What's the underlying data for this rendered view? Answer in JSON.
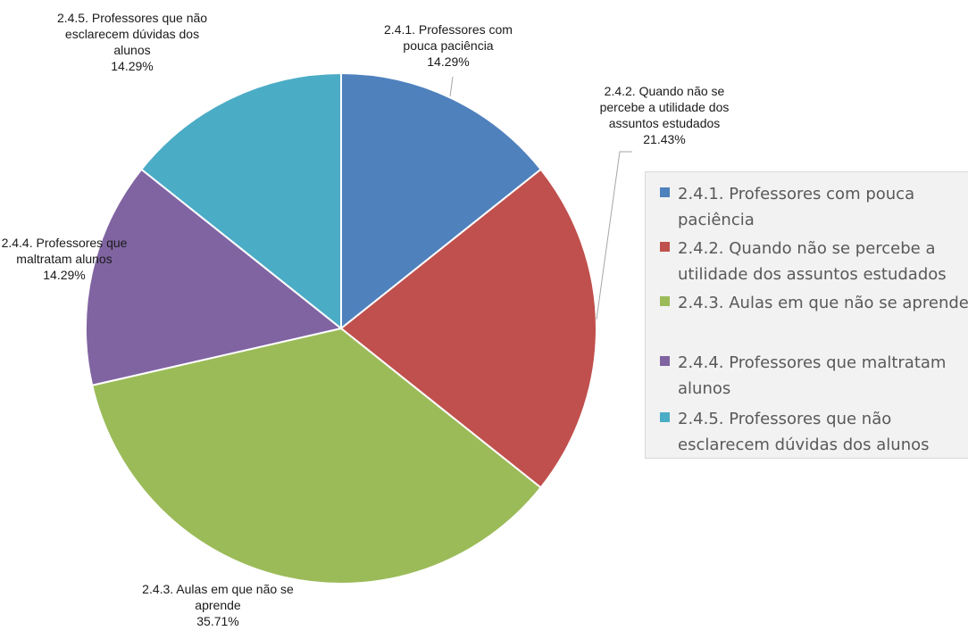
{
  "chart_data": {
    "type": "pie",
    "title": "",
    "categories": [
      "2.4.1. Professores com pouca paciência",
      "2.4.2. Quando não se percebe a utilidade dos assuntos estudados",
      "2.4.3. Aulas em que não se aprende",
      "2.4.4. Professores que maltratam alunos",
      "2.4.5. Professores que não esclarecem dúvidas dos alunos"
    ],
    "values": [
      14.29,
      21.43,
      35.71,
      14.29,
      14.29
    ],
    "colors": [
      "#4f81bd",
      "#c0504d",
      "#9bbb59",
      "#8064a2",
      "#4bacc6"
    ],
    "data_labels": [
      {
        "lines": [
          "2.4.1. Professores com",
          "pouca paciência",
          "14.29%"
        ]
      },
      {
        "lines": [
          "2.4.2. Quando não se",
          "percebe a utilidade dos",
          "assuntos estudados",
          "21.43%"
        ]
      },
      {
        "lines": [
          "2.4.3. Aulas em que não se",
          "aprende",
          "35.71%"
        ]
      },
      {
        "lines": [
          "2.4.4. Professores que",
          "maltratam alunos",
          "14.29%"
        ]
      },
      {
        "lines": [
          "2.4.5. Professores que não",
          "esclarecem dúvidas dos",
          "alunos",
          "14.29%"
        ]
      }
    ],
    "legend": {
      "position": "right",
      "entries": [
        "2.4.1. Professores com pouca paciência",
        "2.4.2. Quando não se percebe a utilidade dos assuntos estudados",
        "2.4.3. Aulas em que não se aprende",
        "2.4.4. Professores que maltratam alunos",
        "2.4.5. Professores que não esclarecem dúvidas dos alunos"
      ]
    }
  }
}
